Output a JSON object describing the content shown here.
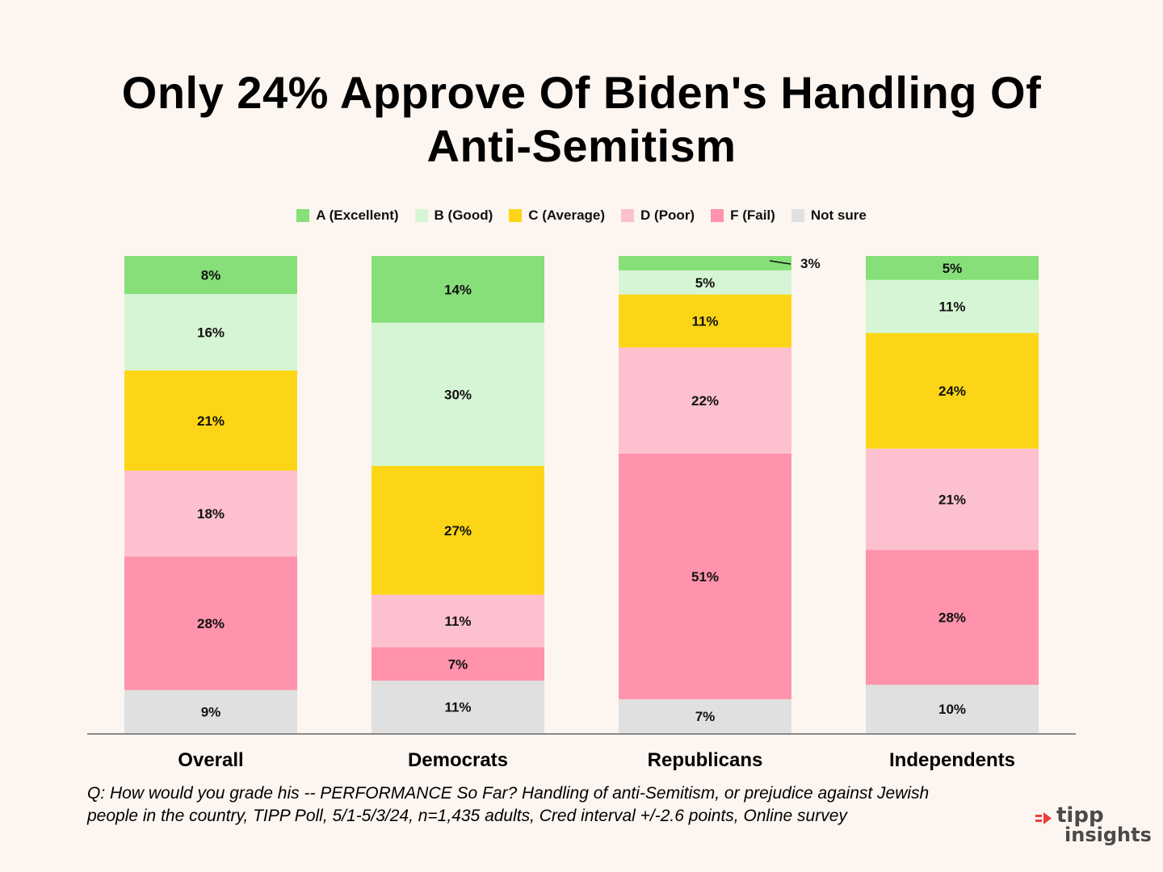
{
  "title": {
    "line1": "Only 24% Approve Of Biden's Handling Of",
    "line2": "Anti-Semitism"
  },
  "legend": [
    {
      "label": "A (Excellent)",
      "color": "#86df78"
    },
    {
      "label": "B (Good)",
      "color": "#d6f5d4"
    },
    {
      "label": "C (Average)",
      "color": "#fcd616"
    },
    {
      "label": "D (Poor)",
      "color": "#fdc0cf"
    },
    {
      "label": "F (Fail)",
      "color": "#ff93ab"
    },
    {
      "label": "Not sure",
      "color": "#e0e0e0"
    }
  ],
  "chart_data": {
    "type": "bar",
    "stacked": true,
    "orientation": "vertical",
    "categories": [
      "Overall",
      "Democrats",
      "Republicans",
      "Independents"
    ],
    "series": [
      {
        "name": "A (Excellent)",
        "color": "#86df78",
        "values": [
          8,
          14,
          3,
          5
        ],
        "labels": [
          "8%",
          "14%",
          "3%",
          "5%"
        ]
      },
      {
        "name": "B (Good)",
        "color": "#d6f5d4",
        "values": [
          16,
          30,
          5,
          11
        ],
        "labels": [
          "16%",
          "30%",
          "5%",
          "11%"
        ]
      },
      {
        "name": "C (Average)",
        "color": "#fcd616",
        "values": [
          21,
          27,
          11,
          24
        ],
        "labels": [
          "21%",
          "27%",
          "11%",
          "24%"
        ]
      },
      {
        "name": "D (Poor)",
        "color": "#fdc0cf",
        "values": [
          18,
          11,
          22,
          21
        ],
        "labels": [
          "18%",
          "11%",
          "22%",
          "21%"
        ]
      },
      {
        "name": "F (Fail)",
        "color": "#ff93ab",
        "values": [
          28,
          7,
          51,
          28
        ],
        "labels": [
          "28%",
          "7%",
          "51%",
          "28%"
        ]
      },
      {
        "name": "Not sure",
        "color": "#e0e0e0",
        "values": [
          9,
          11,
          7,
          10
        ],
        "labels": [
          "9%",
          "11%",
          "7%",
          "10%"
        ]
      }
    ],
    "ylim": [
      0,
      100
    ],
    "legend_position": "top-center",
    "grid": false
  },
  "footnote": {
    "line1": "Q:  How would you grade his -- PERFORMANCE So Far? Handling of anti-Semitism, or prejudice against Jewish",
    "line2": "people in the country, TIPP Poll, 5/1-5/3/24, n=1,435 adults, Cred interval +/-2.6 points, Online survey"
  },
  "logo": {
    "line1": "tipp",
    "line2": "insights",
    "accent_color": "#e8413c"
  }
}
